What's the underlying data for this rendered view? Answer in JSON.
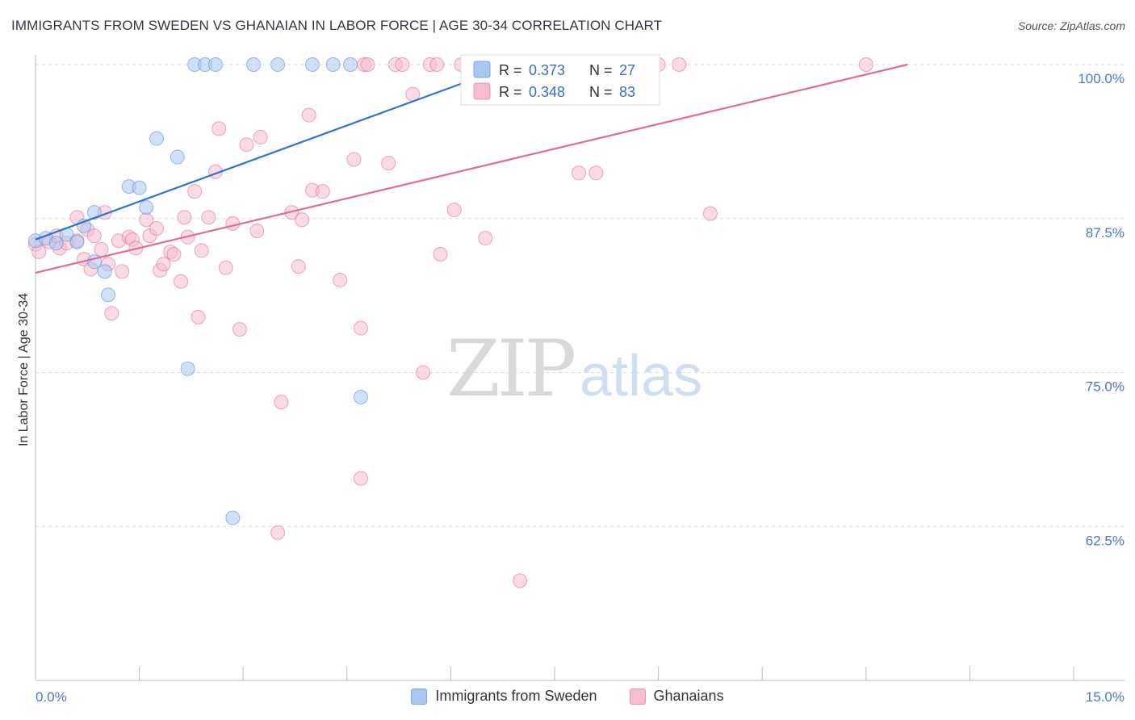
{
  "header": {
    "title": "IMMIGRANTS FROM SWEDEN VS GHANAIAN IN LABOR FORCE | AGE 30-34 CORRELATION CHART",
    "source": "Source: ZipAtlas.com"
  },
  "watermark": {
    "zip": "ZIP",
    "atlas": "atlas"
  },
  "chart_data": {
    "type": "scatter",
    "ylabel": "In Labor Force | Age 30-34",
    "xlim": [
      0,
      15
    ],
    "ylim": [
      50,
      100
    ],
    "x_tick_labels": {
      "left": "0.0%",
      "right": "15.0%"
    },
    "y_ticks": [
      {
        "value": 100,
        "label": "100.0%"
      },
      {
        "value": 87.5,
        "label": "87.5%"
      },
      {
        "value": 75,
        "label": "75.0%"
      },
      {
        "value": 62.5,
        "label": "62.5%"
      }
    ],
    "grid": true,
    "legend_position": "top-center",
    "series": [
      {
        "name": "Immigrants from Sweden",
        "color": "#5b8fd9",
        "fill": "#a9c6f0",
        "R": "0.373",
        "N": "27",
        "trend": {
          "x": [
            0,
            7.1
          ],
          "y": [
            85.8,
            100.4
          ]
        },
        "points": [
          [
            0.0,
            85.7
          ],
          [
            0.15,
            85.9
          ],
          [
            0.3,
            85.5
          ],
          [
            0.45,
            86.2
          ],
          [
            0.6,
            85.6
          ],
          [
            0.7,
            86.9
          ],
          [
            0.85,
            88.0
          ],
          [
            0.85,
            84.0
          ],
          [
            1.0,
            83.2
          ],
          [
            1.05,
            81.3
          ],
          [
            1.35,
            90.1
          ],
          [
            1.5,
            90.0
          ],
          [
            1.6,
            88.4
          ],
          [
            1.75,
            94.0
          ],
          [
            2.05,
            92.5
          ],
          [
            2.2,
            75.3
          ],
          [
            2.3,
            100.0
          ],
          [
            2.45,
            100.0
          ],
          [
            2.6,
            100.0
          ],
          [
            2.85,
            63.2
          ],
          [
            3.15,
            100.0
          ],
          [
            3.5,
            100.0
          ],
          [
            4.0,
            100.0
          ],
          [
            4.3,
            100.0
          ],
          [
            4.55,
            100.0
          ],
          [
            4.7,
            73.0
          ],
          [
            6.6,
            100.0
          ]
        ]
      },
      {
        "name": "Ghanaians",
        "color": "#e0709a",
        "fill": "#f6bcd0",
        "R": "0.348",
        "N": "83",
        "trend": {
          "x": [
            0,
            12.6
          ],
          "y": [
            83.1,
            100.0
          ]
        },
        "points": [
          [
            0.0,
            85.4
          ],
          [
            0.05,
            84.8
          ],
          [
            0.2,
            85.6
          ],
          [
            0.3,
            86.1
          ],
          [
            0.35,
            85.1
          ],
          [
            0.45,
            85.5
          ],
          [
            0.6,
            85.7
          ],
          [
            0.6,
            87.6
          ],
          [
            0.7,
            84.2
          ],
          [
            0.75,
            86.6
          ],
          [
            0.8,
            83.4
          ],
          [
            0.85,
            86.1
          ],
          [
            0.95,
            85.0
          ],
          [
            1.0,
            88.0
          ],
          [
            1.05,
            83.8
          ],
          [
            1.1,
            79.8
          ],
          [
            1.2,
            85.7
          ],
          [
            1.25,
            83.2
          ],
          [
            1.35,
            86.0
          ],
          [
            1.4,
            85.8
          ],
          [
            1.45,
            85.1
          ],
          [
            1.6,
            87.4
          ],
          [
            1.65,
            86.1
          ],
          [
            1.75,
            86.7
          ],
          [
            1.8,
            83.3
          ],
          [
            1.85,
            83.8
          ],
          [
            1.95,
            84.8
          ],
          [
            2.0,
            84.6
          ],
          [
            2.1,
            82.4
          ],
          [
            2.15,
            87.6
          ],
          [
            2.2,
            86.0
          ],
          [
            2.3,
            89.7
          ],
          [
            2.35,
            79.5
          ],
          [
            2.4,
            84.9
          ],
          [
            2.5,
            87.6
          ],
          [
            2.6,
            91.3
          ],
          [
            2.65,
            94.8
          ],
          [
            2.75,
            83.5
          ],
          [
            2.85,
            87.1
          ],
          [
            2.95,
            78.5
          ],
          [
            3.05,
            93.5
          ],
          [
            3.2,
            86.5
          ],
          [
            3.25,
            94.1
          ],
          [
            3.5,
            62.0
          ],
          [
            3.55,
            72.6
          ],
          [
            3.7,
            88.0
          ],
          [
            3.8,
            83.6
          ],
          [
            3.85,
            87.4
          ],
          [
            3.95,
            95.9
          ],
          [
            4.0,
            89.8
          ],
          [
            4.15,
            89.7
          ],
          [
            4.4,
            82.5
          ],
          [
            4.6,
            92.3
          ],
          [
            4.7,
            66.4
          ],
          [
            4.7,
            78.6
          ],
          [
            4.75,
            100.0
          ],
          [
            4.8,
            100.0
          ],
          [
            5.1,
            92.0
          ],
          [
            5.2,
            100.0
          ],
          [
            5.3,
            100.0
          ],
          [
            5.45,
            97.6
          ],
          [
            5.6,
            75.0
          ],
          [
            5.7,
            100.0
          ],
          [
            5.8,
            100.0
          ],
          [
            5.85,
            84.6
          ],
          [
            6.05,
            88.2
          ],
          [
            6.15,
            100.0
          ],
          [
            6.3,
            100.0
          ],
          [
            6.5,
            85.9
          ],
          [
            6.6,
            100.0
          ],
          [
            6.75,
            100.0
          ],
          [
            7.0,
            58.1
          ],
          [
            7.15,
            100.0
          ],
          [
            7.3,
            100.0
          ],
          [
            7.85,
            91.2
          ],
          [
            8.1,
            91.2
          ],
          [
            8.5,
            100.0
          ],
          [
            8.6,
            100.0
          ],
          [
            8.8,
            100.0
          ],
          [
            9.0,
            100.0
          ],
          [
            9.3,
            100.0
          ],
          [
            9.75,
            87.9
          ],
          [
            12.0,
            100.0
          ]
        ]
      }
    ]
  },
  "legend_labels": {
    "r_label": "R =",
    "n_label": "N ="
  }
}
